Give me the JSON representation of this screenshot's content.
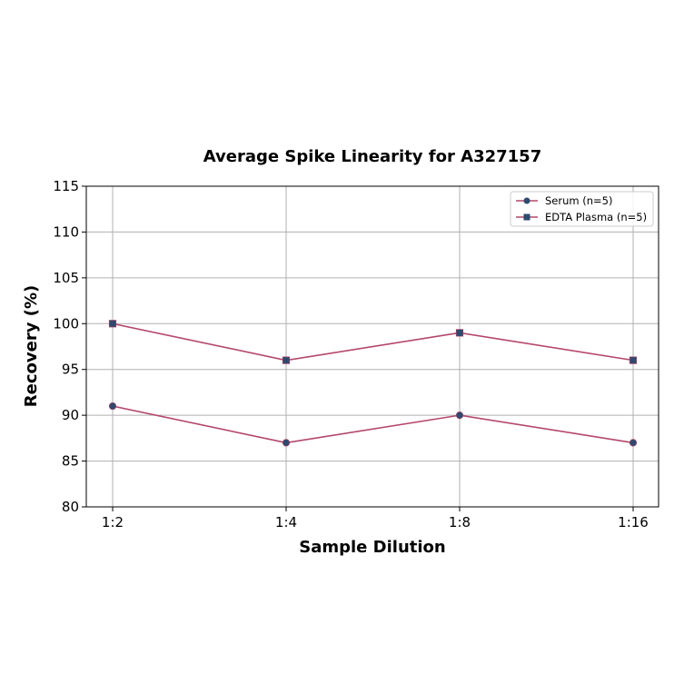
{
  "chart_data": {
    "type": "line",
    "title": "Average Spike Linearity for A327157",
    "xlabel": "Sample Dilution",
    "ylabel": "Recovery (%)",
    "categories": [
      "1:2",
      "1:4",
      "1:8",
      "1:16"
    ],
    "ylim": [
      80,
      115
    ],
    "yticks": [
      80,
      85,
      90,
      95,
      100,
      105,
      110,
      115
    ],
    "grid": true,
    "legend_position": "upper right",
    "series": [
      {
        "name": "Serum (n=5)",
        "marker": "circle",
        "values": [
          91,
          87,
          90,
          87
        ]
      },
      {
        "name": "EDTA Plasma (n=5)",
        "marker": "square",
        "values": [
          100,
          96,
          99,
          96
        ]
      }
    ],
    "colors": {
      "line": "#b5476a",
      "marker": "#2e4a6e",
      "grid": "#b0b0b0"
    }
  }
}
